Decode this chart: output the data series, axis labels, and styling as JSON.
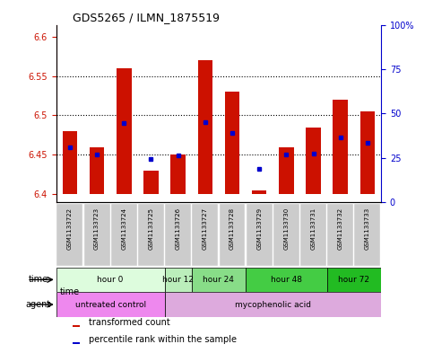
{
  "title": "GDS5265 / ILMN_1875519",
  "samples": [
    "GSM1133722",
    "GSM1133723",
    "GSM1133724",
    "GSM1133725",
    "GSM1133726",
    "GSM1133727",
    "GSM1133728",
    "GSM1133729",
    "GSM1133730",
    "GSM1133731",
    "GSM1133732",
    "GSM1133733"
  ],
  "bar_values": [
    6.48,
    6.46,
    6.56,
    6.43,
    6.45,
    6.57,
    6.53,
    6.405,
    6.46,
    6.485,
    6.52,
    6.505
  ],
  "blue_dot_values": [
    6.46,
    6.45,
    6.49,
    6.445,
    6.449,
    6.492,
    6.478,
    6.432,
    6.45,
    6.452,
    6.472,
    6.465
  ],
  "ylim_left": [
    6.39,
    6.615
  ],
  "ylim_right": [
    0,
    100
  ],
  "yticks_left": [
    6.4,
    6.45,
    6.5,
    6.55,
    6.6
  ],
  "ytick_labels_left": [
    "6.4",
    "6.45",
    "6.5",
    "6.55",
    "6.6"
  ],
  "yticks_right": [
    0,
    25,
    50,
    75,
    100
  ],
  "ytick_labels_right": [
    "0",
    "25",
    "50",
    "75",
    "100%"
  ],
  "bar_color": "#cc1100",
  "blue_dot_color": "#0000cc",
  "bar_bottom": 6.4,
  "time_groups": [
    {
      "label": "hour 0",
      "start": 0,
      "end": 3,
      "color": "#ddfcdd"
    },
    {
      "label": "hour 12",
      "start": 4,
      "end": 4,
      "color": "#bbeebb"
    },
    {
      "label": "hour 24",
      "start": 5,
      "end": 6,
      "color": "#88dd88"
    },
    {
      "label": "hour 48",
      "start": 7,
      "end": 9,
      "color": "#44cc44"
    },
    {
      "label": "hour 72",
      "start": 10,
      "end": 11,
      "color": "#22bb22"
    }
  ],
  "agent_groups": [
    {
      "label": "untreated control",
      "start": 0,
      "end": 3,
      "color": "#ee88ee"
    },
    {
      "label": "mycophenolic acid",
      "start": 4,
      "end": 11,
      "color": "#ddaadd"
    }
  ],
  "legend_items": [
    {
      "color": "#cc1100",
      "label": "transformed count"
    },
    {
      "color": "#0000cc",
      "label": "percentile rank within the sample"
    }
  ],
  "grid_yticks": [
    6.45,
    6.5,
    6.55
  ],
  "left_tick_color": "#cc1100",
  "right_tick_color": "#0000cc",
  "sample_box_color": "#cccccc"
}
